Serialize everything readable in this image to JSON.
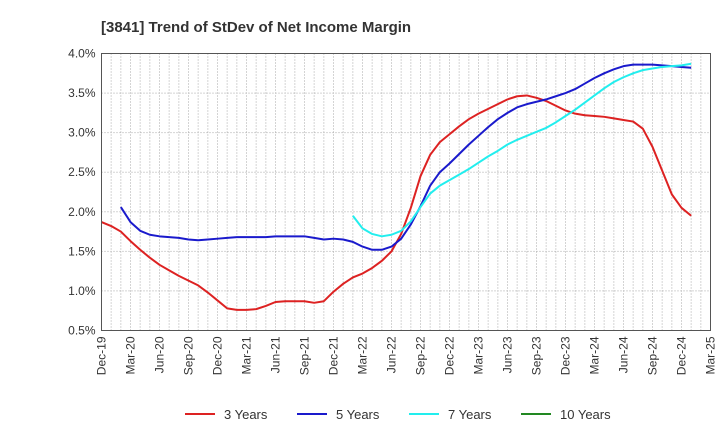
{
  "chart_data": {
    "type": "line",
    "title": "[3841]  Trend of StDev of Net Income Margin",
    "xlabel": "",
    "ylabel": "",
    "x_ticks": [
      "Dec-19",
      "Mar-20",
      "Jun-20",
      "Sep-20",
      "Dec-20",
      "Mar-21",
      "Jun-21",
      "Sep-21",
      "Dec-21",
      "Mar-22",
      "Jun-22",
      "Sep-22",
      "Dec-22",
      "Mar-23",
      "Jun-23",
      "Sep-23",
      "Dec-23",
      "Mar-24",
      "Jun-24",
      "Sep-24",
      "Dec-24",
      "Mar-25"
    ],
    "y_ticks": [
      "0.5%",
      "1.0%",
      "1.5%",
      "2.0%",
      "2.5%",
      "3.0%",
      "3.5%",
      "4.0%"
    ],
    "ylim": [
      0.5,
      4.0
    ],
    "y_unit": "%",
    "grid": true,
    "legend_position": "bottom",
    "series": [
      {
        "name": "3 Years",
        "color": "#dd2222",
        "points": [
          [
            "Dec-19",
            1.87
          ],
          [
            "Jan-20",
            1.82
          ],
          [
            "Feb-20",
            1.75
          ],
          [
            "Mar-20",
            1.63
          ],
          [
            "Apr-20",
            1.52
          ],
          [
            "May-20",
            1.42
          ],
          [
            "Jun-20",
            1.33
          ],
          [
            "Jul-20",
            1.26
          ],
          [
            "Aug-20",
            1.19
          ],
          [
            "Sep-20",
            1.13
          ],
          [
            "Oct-20",
            1.07
          ],
          [
            "Nov-20",
            0.98
          ],
          [
            "Dec-20",
            0.88
          ],
          [
            "Jan-21",
            0.78
          ],
          [
            "Feb-21",
            0.76
          ],
          [
            "Mar-21",
            0.76
          ],
          [
            "Apr-21",
            0.77
          ],
          [
            "May-21",
            0.81
          ],
          [
            "Jun-21",
            0.86
          ],
          [
            "Jul-21",
            0.87
          ],
          [
            "Aug-21",
            0.87
          ],
          [
            "Sep-21",
            0.87
          ],
          [
            "Oct-21",
            0.85
          ],
          [
            "Nov-21",
            0.87
          ],
          [
            "Dec-21",
            0.99
          ],
          [
            "Jan-22",
            1.09
          ],
          [
            "Feb-22",
            1.17
          ],
          [
            "Mar-22",
            1.22
          ],
          [
            "Apr-22",
            1.29
          ],
          [
            "May-22",
            1.38
          ],
          [
            "Jun-22",
            1.5
          ],
          [
            "Jul-22",
            1.72
          ],
          [
            "Aug-22",
            2.05
          ],
          [
            "Sep-22",
            2.45
          ],
          [
            "Oct-22",
            2.72
          ],
          [
            "Nov-22",
            2.88
          ],
          [
            "Dec-22",
            2.98
          ],
          [
            "Jan-23",
            3.08
          ],
          [
            "Feb-23",
            3.17
          ],
          [
            "Mar-23",
            3.24
          ],
          [
            "Apr-23",
            3.3
          ],
          [
            "May-23",
            3.36
          ],
          [
            "Jun-23",
            3.42
          ],
          [
            "Jul-23",
            3.46
          ],
          [
            "Aug-23",
            3.47
          ],
          [
            "Sep-23",
            3.44
          ],
          [
            "Oct-23",
            3.4
          ],
          [
            "Nov-23",
            3.34
          ],
          [
            "Dec-23",
            3.28
          ],
          [
            "Jan-24",
            3.24
          ],
          [
            "Feb-24",
            3.22
          ],
          [
            "Mar-24",
            3.21
          ],
          [
            "Apr-24",
            3.2
          ],
          [
            "May-24",
            3.18
          ],
          [
            "Jun-24",
            3.16
          ],
          [
            "Jul-24",
            3.14
          ],
          [
            "Aug-24",
            3.05
          ],
          [
            "Sep-24",
            2.82
          ],
          [
            "Oct-24",
            2.52
          ],
          [
            "Nov-24",
            2.22
          ],
          [
            "Dec-24",
            2.05
          ],
          [
            "Jan-25",
            1.95
          ]
        ]
      },
      {
        "name": "5 Years",
        "color": "#1a1acc",
        "points": [
          [
            "Feb-20",
            2.06
          ],
          [
            "Mar-20",
            1.87
          ],
          [
            "Apr-20",
            1.76
          ],
          [
            "May-20",
            1.71
          ],
          [
            "Jun-20",
            1.69
          ],
          [
            "Jul-20",
            1.68
          ],
          [
            "Aug-20",
            1.67
          ],
          [
            "Sep-20",
            1.65
          ],
          [
            "Oct-20",
            1.64
          ],
          [
            "Nov-20",
            1.65
          ],
          [
            "Dec-20",
            1.66
          ],
          [
            "Jan-21",
            1.67
          ],
          [
            "Feb-21",
            1.68
          ],
          [
            "Mar-21",
            1.68
          ],
          [
            "Apr-21",
            1.68
          ],
          [
            "May-21",
            1.68
          ],
          [
            "Jun-21",
            1.69
          ],
          [
            "Jul-21",
            1.69
          ],
          [
            "Aug-21",
            1.69
          ],
          [
            "Sep-21",
            1.69
          ],
          [
            "Oct-21",
            1.67
          ],
          [
            "Nov-21",
            1.65
          ],
          [
            "Dec-21",
            1.66
          ],
          [
            "Jan-22",
            1.65
          ],
          [
            "Feb-22",
            1.62
          ],
          [
            "Mar-22",
            1.56
          ],
          [
            "Apr-22",
            1.52
          ],
          [
            "May-22",
            1.52
          ],
          [
            "Jun-22",
            1.56
          ],
          [
            "Jul-22",
            1.66
          ],
          [
            "Aug-22",
            1.84
          ],
          [
            "Sep-22",
            2.07
          ],
          [
            "Oct-22",
            2.33
          ],
          [
            "Nov-22",
            2.5
          ],
          [
            "Dec-22",
            2.61
          ],
          [
            "Jan-23",
            2.73
          ],
          [
            "Feb-23",
            2.85
          ],
          [
            "Mar-23",
            2.96
          ],
          [
            "Apr-23",
            3.07
          ],
          [
            "May-23",
            3.17
          ],
          [
            "Jun-23",
            3.25
          ],
          [
            "Jul-23",
            3.32
          ],
          [
            "Aug-23",
            3.36
          ],
          [
            "Sep-23",
            3.39
          ],
          [
            "Oct-23",
            3.42
          ],
          [
            "Nov-23",
            3.46
          ],
          [
            "Dec-23",
            3.5
          ],
          [
            "Jan-24",
            3.55
          ],
          [
            "Feb-24",
            3.62
          ],
          [
            "Mar-24",
            3.69
          ],
          [
            "Apr-24",
            3.75
          ],
          [
            "May-24",
            3.8
          ],
          [
            "Jun-24",
            3.84
          ],
          [
            "Jul-24",
            3.86
          ],
          [
            "Aug-24",
            3.86
          ],
          [
            "Sep-24",
            3.86
          ],
          [
            "Oct-24",
            3.85
          ],
          [
            "Nov-24",
            3.84
          ],
          [
            "Dec-24",
            3.83
          ],
          [
            "Jan-25",
            3.82
          ]
        ]
      },
      {
        "name": "7 Years",
        "color": "#22eeee",
        "points": [
          [
            "Feb-22",
            1.95
          ],
          [
            "Mar-22",
            1.79
          ],
          [
            "Apr-22",
            1.72
          ],
          [
            "May-22",
            1.69
          ],
          [
            "Jun-22",
            1.71
          ],
          [
            "Jul-22",
            1.76
          ],
          [
            "Aug-22",
            1.88
          ],
          [
            "Sep-22",
            2.06
          ],
          [
            "Oct-22",
            2.23
          ],
          [
            "Nov-22",
            2.33
          ],
          [
            "Dec-22",
            2.4
          ],
          [
            "Jan-23",
            2.47
          ],
          [
            "Feb-23",
            2.54
          ],
          [
            "Mar-23",
            2.62
          ],
          [
            "Apr-23",
            2.7
          ],
          [
            "May-23",
            2.77
          ],
          [
            "Jun-23",
            2.85
          ],
          [
            "Jul-23",
            2.91
          ],
          [
            "Aug-23",
            2.96
          ],
          [
            "Sep-23",
            3.01
          ],
          [
            "Oct-23",
            3.06
          ],
          [
            "Nov-23",
            3.13
          ],
          [
            "Dec-23",
            3.21
          ],
          [
            "Jan-24",
            3.29
          ],
          [
            "Feb-24",
            3.38
          ],
          [
            "Mar-24",
            3.47
          ],
          [
            "Apr-24",
            3.56
          ],
          [
            "May-24",
            3.64
          ],
          [
            "Jun-24",
            3.7
          ],
          [
            "Jul-24",
            3.75
          ],
          [
            "Aug-24",
            3.79
          ],
          [
            "Sep-24",
            3.81
          ],
          [
            "Oct-24",
            3.83
          ],
          [
            "Nov-24",
            3.84
          ],
          [
            "Dec-24",
            3.85
          ],
          [
            "Jan-25",
            3.87
          ]
        ]
      },
      {
        "name": "10 Years",
        "color": "#228822",
        "points": []
      }
    ]
  }
}
